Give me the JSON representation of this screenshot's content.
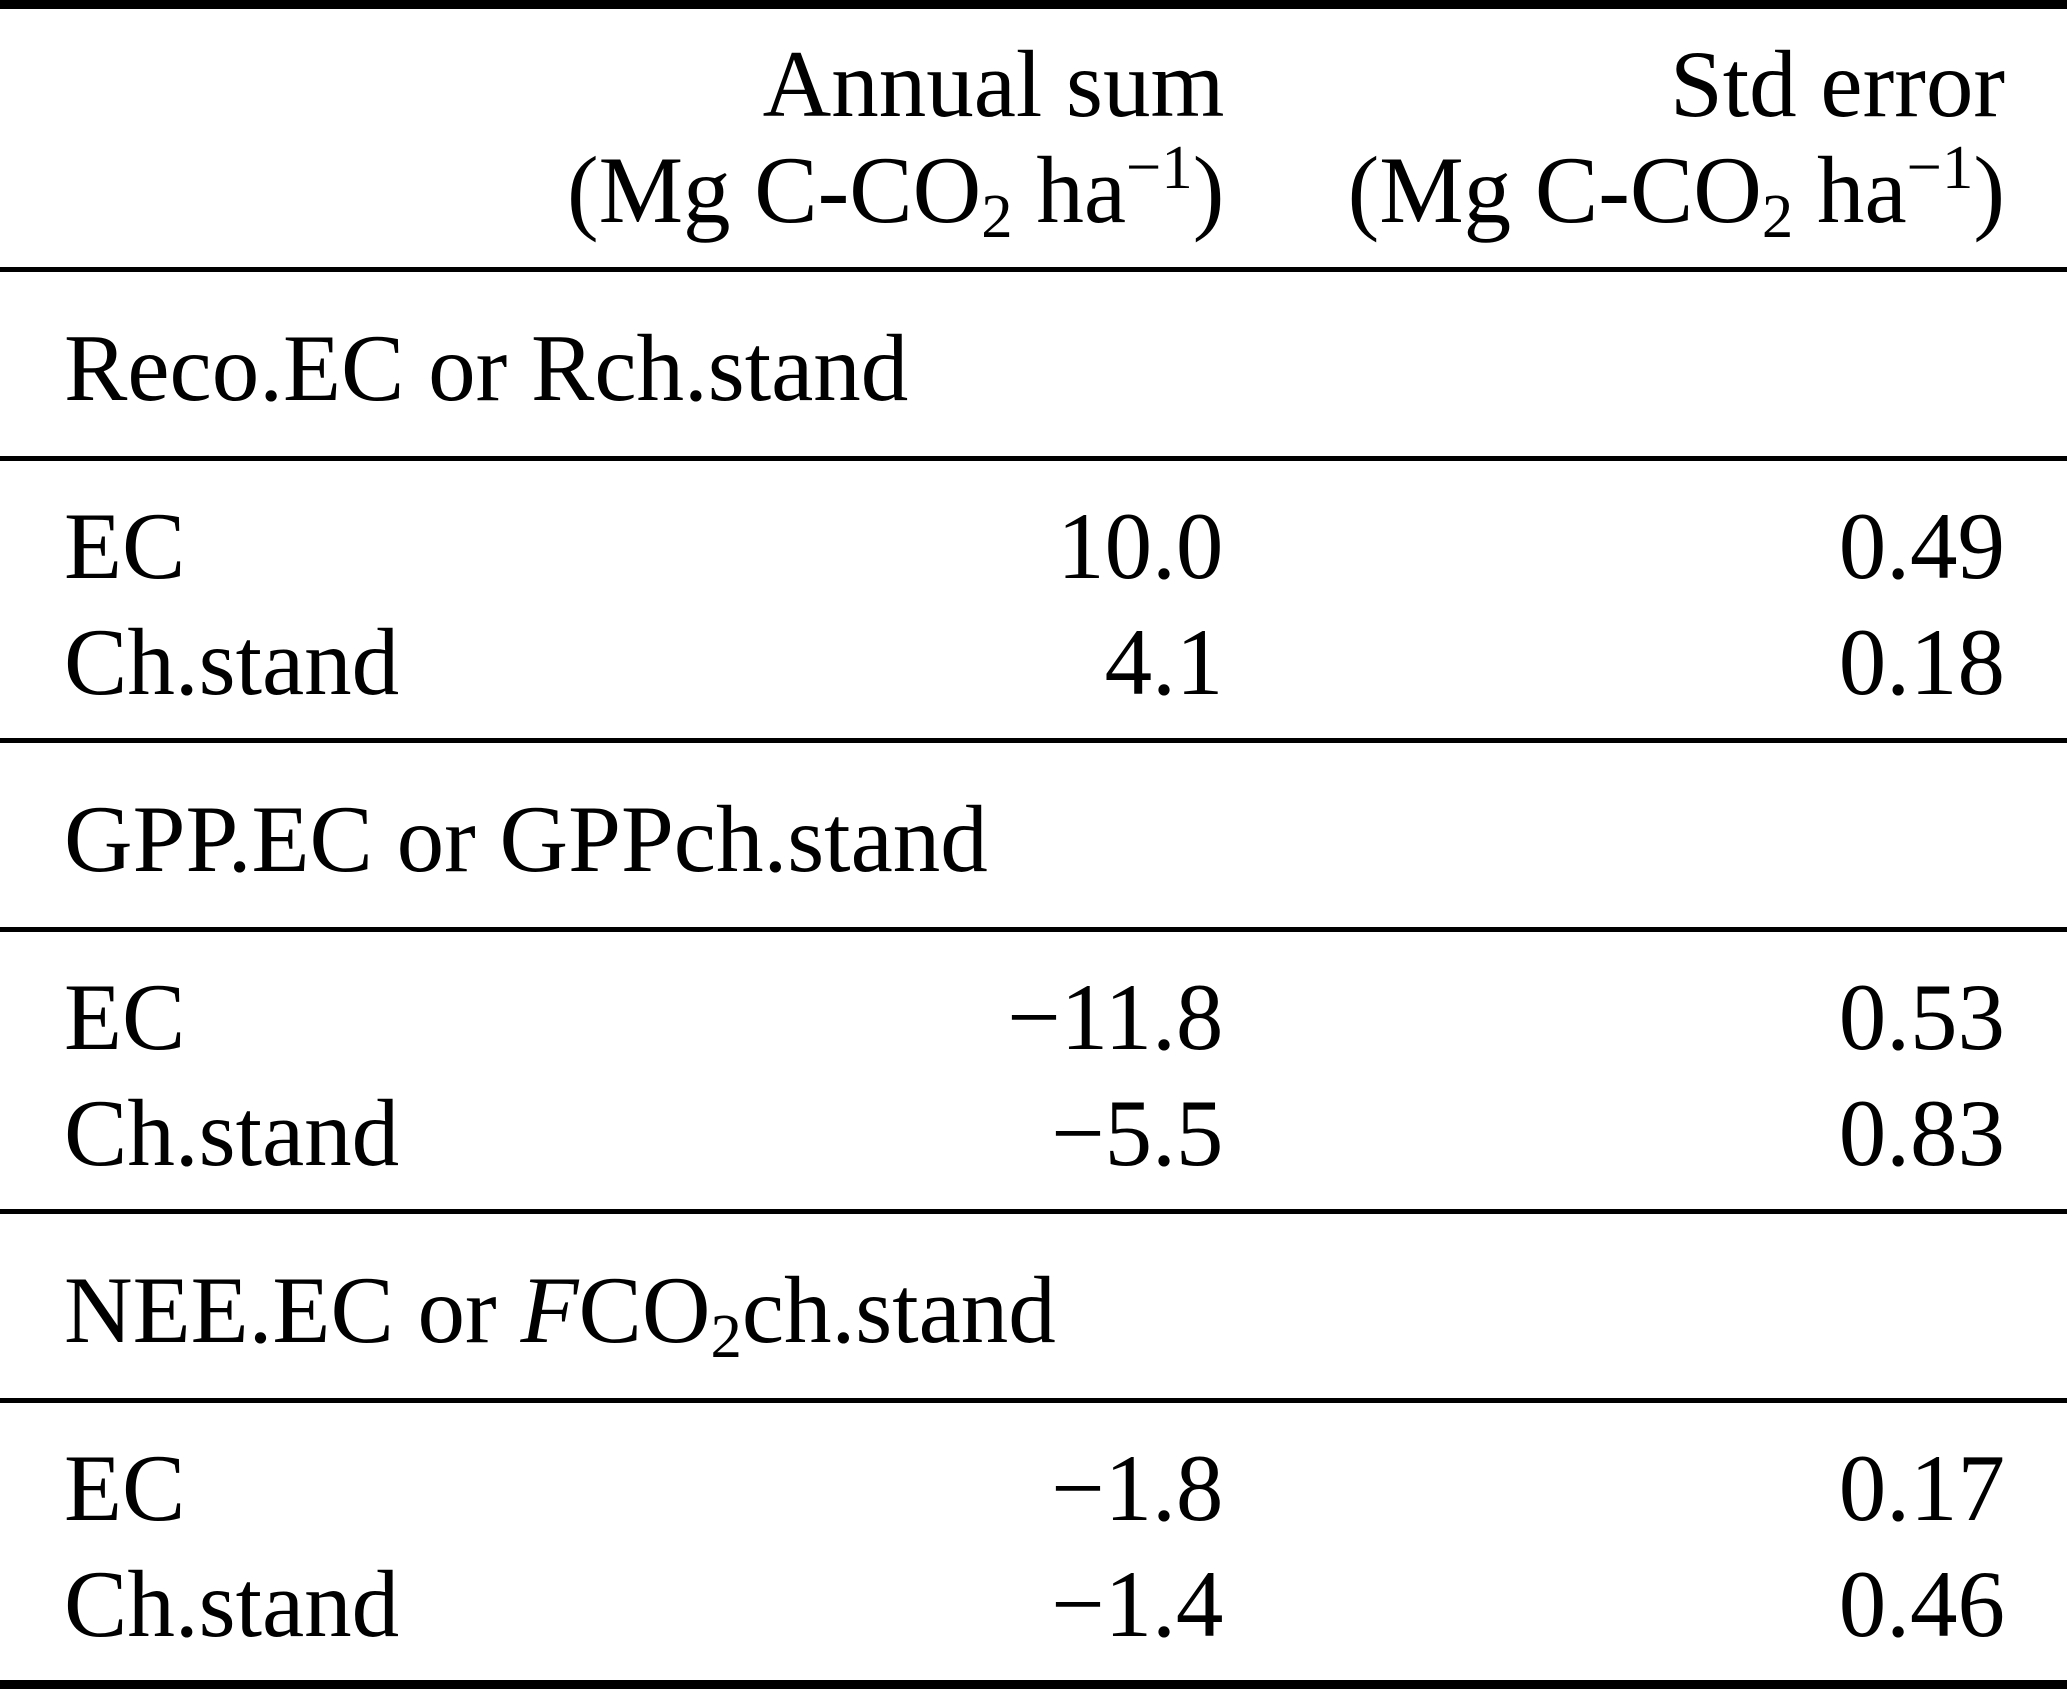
{
  "header": {
    "annual_sum": {
      "title": "Annual sum",
      "unit": {
        "pre": "(Mg C-CO",
        "sub": "2",
        "mid": " ha",
        "sup": "−1",
        "post": ")"
      }
    },
    "std_error": {
      "title": "Std error",
      "unit": {
        "pre": "(Mg C-CO",
        "sub": "2",
        "mid": " ha",
        "sup": "−1",
        "post": ")"
      }
    }
  },
  "sections": [
    {
      "title": {
        "pre": "Reco.EC or Rch.stand",
        "italic": "",
        "mid": "",
        "sub": "",
        "post": ""
      },
      "rows": [
        {
          "label": "EC",
          "annual_sum": "10.0",
          "std_error": "0.49"
        },
        {
          "label": "Ch.stand",
          "annual_sum": "4.1",
          "std_error": "0.18"
        }
      ]
    },
    {
      "title": {
        "pre": "GPP.EC or GPPch.stand",
        "italic": "",
        "mid": "",
        "sub": "",
        "post": ""
      },
      "rows": [
        {
          "label": "EC",
          "annual_sum": "−11.8",
          "std_error": "0.53"
        },
        {
          "label": "Ch.stand",
          "annual_sum": "−5.5",
          "std_error": "0.83"
        }
      ]
    },
    {
      "title": {
        "pre": "NEE.EC or ",
        "italic": "F",
        "mid": "CO",
        "sub": "2",
        "post": "ch.stand"
      },
      "rows": [
        {
          "label": "EC",
          "annual_sum": "−1.8",
          "std_error": "0.17"
        },
        {
          "label": "Ch.stand",
          "annual_sum": "−1.4",
          "std_error": "0.46"
        }
      ]
    }
  ],
  "chart_data": {
    "type": "table",
    "columns": [
      "",
      "Annual sum (Mg C-CO2 ha−1)",
      "Std error (Mg C-CO2 ha−1)"
    ],
    "groups": [
      {
        "group": "Reco.EC or Rch.stand",
        "rows": [
          [
            "EC",
            10.0,
            0.49
          ],
          [
            "Ch.stand",
            4.1,
            0.18
          ]
        ]
      },
      {
        "group": "GPP.EC or GPPch.stand",
        "rows": [
          [
            "EC",
            -11.8,
            0.53
          ],
          [
            "Ch.stand",
            -5.5,
            0.83
          ]
        ]
      },
      {
        "group": "NEE.EC or FCO2ch.stand",
        "rows": [
          [
            "EC",
            -1.8,
            0.17
          ],
          [
            "Ch.stand",
            -1.4,
            0.46
          ]
        ]
      }
    ]
  }
}
